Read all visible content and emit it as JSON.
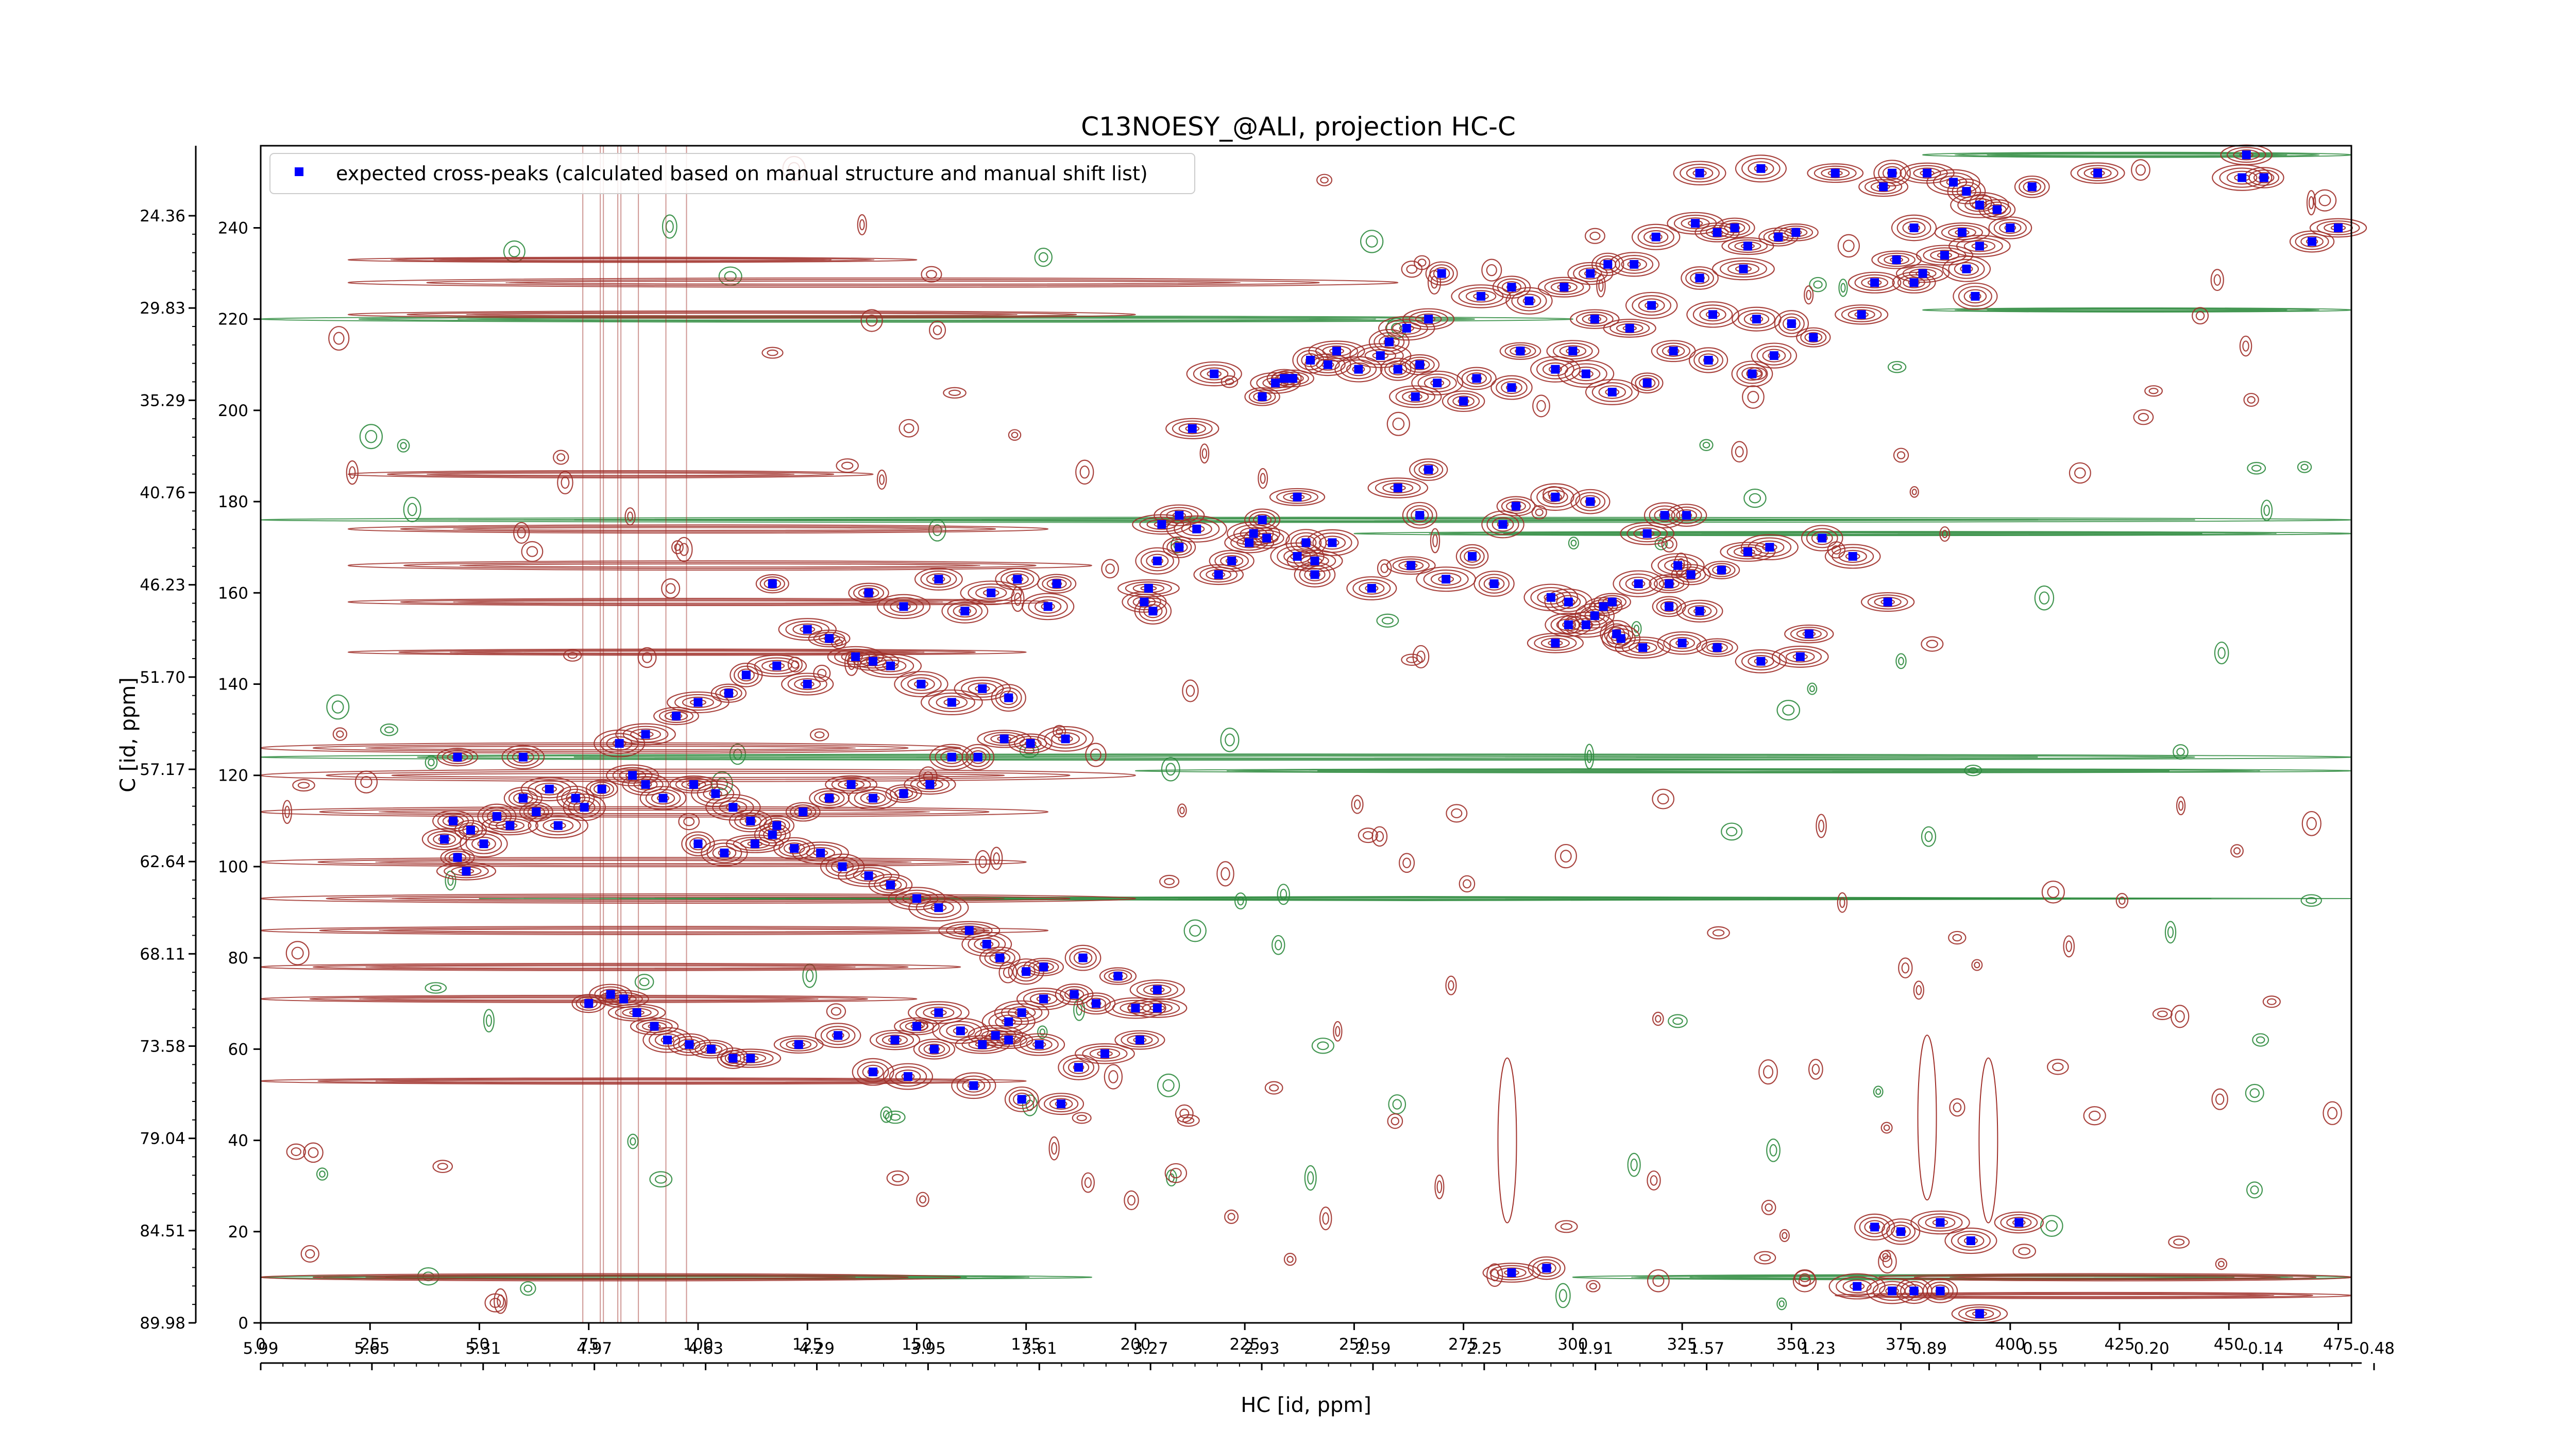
{
  "chart_data": {
    "type": "scatter",
    "title": "C13NOESY_@ALI, projection HC-C",
    "xlabel": "HC [id, ppm]",
    "ylabel": "C [id, ppm]",
    "x_index_ticks": [
      "0",
      "25",
      "50",
      "75",
      "100",
      "125",
      "150",
      "175",
      "200",
      "225",
      "250",
      "275",
      "300",
      "325",
      "350",
      "375",
      "400",
      "425",
      "450",
      "475"
    ],
    "x_ppm_ticks": [
      "5.99",
      "5.65",
      "5.31",
      "4.97",
      "4.63",
      "4.29",
      "3.95",
      "3.61",
      "3.27",
      "2.93",
      "2.59",
      "2.25",
      "1.91",
      "1.57",
      "1.23",
      "0.89",
      "0.55",
      "0.20",
      "-0.14",
      "-0.48"
    ],
    "y_index_ticks": [
      "0",
      "20",
      "40",
      "60",
      "80",
      "100",
      "120",
      "140",
      "160",
      "180",
      "200",
      "220",
      "240"
    ],
    "y_ppm_ticks": [
      "89.98",
      "84.51",
      "79.04",
      "73.58",
      "68.11",
      "62.64",
      "57.17",
      "51.70",
      "46.23",
      "40.76",
      "35.29",
      "29.83",
      "24.36"
    ],
    "xlim": [
      0,
      478
    ],
    "ylim": [
      0,
      258
    ],
    "grid": false,
    "legend_position": "top-left",
    "colors": {
      "expected": "#0000ff",
      "positive_contours": "#a0302a",
      "negative_contours": "#2e8b3e"
    },
    "series": [
      {
        "name": "expected cross-peaks (calculated based on manual structure and manual shift list)",
        "marker": "square",
        "points": [
          [
            454,
            256
          ],
          [
            343,
            253
          ],
          [
            329,
            252
          ],
          [
            373,
            252
          ],
          [
            387,
            250
          ],
          [
            381,
            252
          ],
          [
            360,
            252
          ],
          [
            371,
            249
          ],
          [
            390,
            248
          ],
          [
            393,
            245
          ],
          [
            405,
            249
          ],
          [
            420,
            252
          ],
          [
            458,
            251
          ],
          [
            453,
            251
          ],
          [
            469,
            237
          ],
          [
            475,
            240
          ],
          [
            397,
            244
          ],
          [
            400,
            240
          ],
          [
            393,
            236
          ],
          [
            389,
            239
          ],
          [
            378,
            240
          ],
          [
            385,
            234
          ],
          [
            390,
            231
          ],
          [
            380,
            230
          ],
          [
            374,
            233
          ],
          [
            369,
            228
          ],
          [
            366,
            221
          ],
          [
            378,
            228
          ],
          [
            392,
            225
          ],
          [
            351,
            239
          ],
          [
            347,
            238
          ],
          [
            340,
            236
          ],
          [
            337,
            240
          ],
          [
            333,
            239
          ],
          [
            328,
            241
          ],
          [
            319,
            238
          ],
          [
            314,
            232
          ],
          [
            308,
            232
          ],
          [
            304,
            230
          ],
          [
            298,
            227
          ],
          [
            290,
            224
          ],
          [
            286,
            227
          ],
          [
            279,
            225
          ],
          [
            270,
            230
          ],
          [
            267,
            220
          ],
          [
            262,
            218
          ],
          [
            258,
            215
          ],
          [
            339,
            231
          ],
          [
            329,
            229
          ],
          [
            332,
            221
          ],
          [
            342,
            220
          ],
          [
            350,
            219
          ],
          [
            355,
            216
          ],
          [
            346,
            212
          ],
          [
            341,
            208
          ],
          [
            331,
            211
          ],
          [
            323,
            213
          ],
          [
            317,
            206
          ],
          [
            309,
            204
          ],
          [
            303,
            208
          ],
          [
            296,
            209
          ],
          [
            288,
            213
          ],
          [
            278,
            207
          ],
          [
            269,
            206
          ],
          [
            264,
            203
          ],
          [
            318,
            223
          ],
          [
            313,
            218
          ],
          [
            305,
            220
          ],
          [
            300,
            213
          ],
          [
            286,
            205
          ],
          [
            275,
            202
          ],
          [
            265,
            210
          ],
          [
            260,
            209
          ],
          [
            256,
            212
          ],
          [
            251,
            209
          ],
          [
            246,
            213
          ],
          [
            244,
            210
          ],
          [
            240,
            211
          ],
          [
            236,
            207
          ],
          [
            232,
            206
          ],
          [
            234,
            207
          ],
          [
            229,
            203
          ],
          [
            218,
            208
          ],
          [
            213,
            196
          ],
          [
            267,
            187
          ],
          [
            260,
            183
          ],
          [
            265,
            177
          ],
          [
            284,
            175
          ],
          [
            287,
            179
          ],
          [
            296,
            181
          ],
          [
            304,
            180
          ],
          [
            321,
            177
          ],
          [
            326,
            177
          ],
          [
            317,
            173
          ],
          [
            324,
            166
          ],
          [
            322,
            162
          ],
          [
            237,
            181
          ],
          [
            229,
            176
          ],
          [
            230,
            172
          ],
          [
            227,
            173
          ],
          [
            226,
            171
          ],
          [
            222,
            167
          ],
          [
            219,
            164
          ],
          [
            214,
            174
          ],
          [
            210,
            177
          ],
          [
            206,
            175
          ],
          [
            210,
            170
          ],
          [
            205,
            167
          ],
          [
            203,
            161
          ],
          [
            202,
            158
          ],
          [
            204,
            156
          ],
          [
            239,
            171
          ],
          [
            237,
            168
          ],
          [
            241,
            167
          ],
          [
            245,
            171
          ],
          [
            241,
            164
          ],
          [
            254,
            161
          ],
          [
            263,
            166
          ],
          [
            271,
            163
          ],
          [
            277,
            168
          ],
          [
            282,
            162
          ],
          [
            295,
            159
          ],
          [
            299,
            158
          ],
          [
            307,
            157
          ],
          [
            311,
            150
          ],
          [
            296,
            149
          ],
          [
            357,
            172
          ],
          [
            364,
            168
          ],
          [
            372,
            158
          ],
          [
            345,
            170
          ],
          [
            340,
            169
          ],
          [
            334,
            165
          ],
          [
            327,
            164
          ],
          [
            329,
            156
          ],
          [
            322,
            157
          ],
          [
            315,
            162
          ],
          [
            309,
            158
          ],
          [
            305,
            155
          ],
          [
            299,
            153
          ],
          [
            354,
            151
          ],
          [
            352,
            146
          ],
          [
            343,
            145
          ],
          [
            333,
            148
          ],
          [
            325,
            149
          ],
          [
            316,
            148
          ],
          [
            310,
            151
          ],
          [
            303,
            153
          ],
          [
            182,
            162
          ],
          [
            180,
            157
          ],
          [
            173,
            163
          ],
          [
            167,
            160
          ],
          [
            161,
            156
          ],
          [
            155,
            163
          ],
          [
            147,
            157
          ],
          [
            139,
            160
          ],
          [
            117,
            162
          ],
          [
            125,
            152
          ],
          [
            130,
            150
          ],
          [
            171,
            137
          ],
          [
            165,
            139
          ],
          [
            158,
            136
          ],
          [
            151,
            140
          ],
          [
            144,
            144
          ],
          [
            140,
            145
          ],
          [
            136,
            146
          ],
          [
            125,
            140
          ],
          [
            118,
            144
          ],
          [
            111,
            142
          ],
          [
            107,
            138
          ],
          [
            100,
            136
          ],
          [
            95,
            133
          ],
          [
            88,
            129
          ],
          [
            82,
            127
          ],
          [
            184,
            128
          ],
          [
            176,
            127
          ],
          [
            170,
            128
          ],
          [
            164,
            124
          ],
          [
            158,
            124
          ],
          [
            153,
            118
          ],
          [
            147,
            116
          ],
          [
            140,
            115
          ],
          [
            135,
            118
          ],
          [
            130,
            115
          ],
          [
            124,
            112
          ],
          [
            118,
            109
          ],
          [
            113,
            105
          ],
          [
            106,
            103
          ],
          [
            100,
            105
          ],
          [
            85,
            120
          ],
          [
            78,
            117
          ],
          [
            72,
            115
          ],
          [
            66,
            117
          ],
          [
            60,
            115
          ],
          [
            54,
            111
          ],
          [
            48,
            108
          ],
          [
            44,
            110
          ],
          [
            42,
            106
          ],
          [
            45,
            102
          ],
          [
            47,
            99
          ],
          [
            51,
            105
          ],
          [
            57,
            109
          ],
          [
            63,
            112
          ],
          [
            68,
            109
          ],
          [
            74,
            113
          ],
          [
            45,
            124
          ],
          [
            60,
            124
          ],
          [
            88,
            118
          ],
          [
            92,
            115
          ],
          [
            99,
            118
          ],
          [
            104,
            116
          ],
          [
            108,
            113
          ],
          [
            112,
            110
          ],
          [
            117,
            107
          ],
          [
            122,
            104
          ],
          [
            128,
            103
          ],
          [
            133,
            100
          ],
          [
            139,
            98
          ],
          [
            144,
            96
          ],
          [
            150,
            93
          ],
          [
            155,
            91
          ],
          [
            162,
            86
          ],
          [
            166,
            83
          ],
          [
            169,
            80
          ],
          [
            175,
            77
          ],
          [
            179,
            78
          ],
          [
            188,
            80
          ],
          [
            196,
            76
          ],
          [
            205,
            73
          ],
          [
            205,
            69
          ],
          [
            200,
            69
          ],
          [
            191,
            70
          ],
          [
            186,
            72
          ],
          [
            179,
            71
          ],
          [
            174,
            68
          ],
          [
            171,
            66
          ],
          [
            168,
            63
          ],
          [
            165,
            61
          ],
          [
            145,
            62
          ],
          [
            150,
            65
          ],
          [
            155,
            68
          ],
          [
            160,
            64
          ],
          [
            132,
            63
          ],
          [
            123,
            61
          ],
          [
            112,
            58
          ],
          [
            108,
            58
          ],
          [
            103,
            60
          ],
          [
            98,
            61
          ],
          [
            93,
            62
          ],
          [
            90,
            65
          ],
          [
            86,
            68
          ],
          [
            83,
            71
          ],
          [
            80,
            72
          ],
          [
            75,
            70
          ],
          [
            140,
            55
          ],
          [
            148,
            54
          ],
          [
            163,
            52
          ],
          [
            174,
            49
          ],
          [
            183,
            48
          ],
          [
            187,
            56
          ],
          [
            193,
            59
          ],
          [
            201,
            62
          ],
          [
            178,
            61
          ],
          [
            171,
            62
          ],
          [
            154,
            60
          ],
          [
            286,
            11
          ],
          [
            294,
            12
          ],
          [
            365,
            8
          ],
          [
            373,
            7
          ],
          [
            378,
            7
          ],
          [
            384,
            7
          ],
          [
            393,
            2
          ],
          [
            402,
            22
          ],
          [
            384,
            22
          ],
          [
            375,
            20
          ],
          [
            369,
            21
          ],
          [
            391,
            18
          ]
        ]
      }
    ]
  }
}
